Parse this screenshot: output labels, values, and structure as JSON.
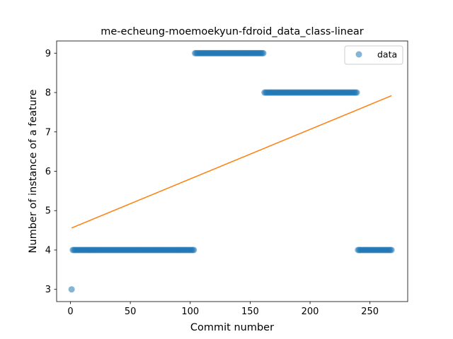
{
  "chart_data": {
    "type": "scatter",
    "title": "me-echeung-moemoekyun-fdroid_data_class-linear",
    "xlabel": "Commit number",
    "ylabel": "Number of instance of a feature",
    "xlim": [
      -11.5,
      281.5
    ],
    "ylim": [
      2.69,
      9.31
    ],
    "xticks": [
      0,
      50,
      100,
      150,
      200,
      250
    ],
    "yticks": [
      3,
      4,
      5,
      6,
      7,
      8,
      9
    ],
    "grid": false,
    "legend": {
      "position": "top-right",
      "entries": [
        "data"
      ]
    },
    "colors": {
      "scatter": "#1f77b4",
      "fit_line": "#ff7f0e"
    },
    "scatter_segments": [
      {
        "x_start": 1,
        "x_end": 1,
        "y": 3
      },
      {
        "x_start": 2,
        "x_end": 103,
        "y": 4
      },
      {
        "x_start": 104,
        "x_end": 161,
        "y": 9
      },
      {
        "x_start": 162,
        "x_end": 239,
        "y": 8
      },
      {
        "x_start": 240,
        "x_end": 268,
        "y": 4
      }
    ],
    "fit_line": {
      "x": [
        1,
        268
      ],
      "y": [
        4.56,
        7.92
      ]
    }
  }
}
